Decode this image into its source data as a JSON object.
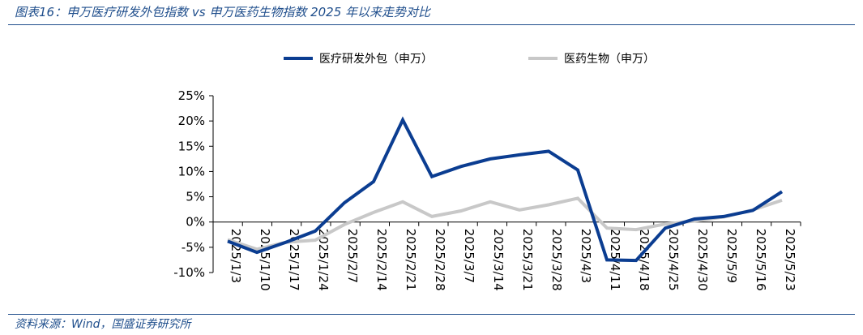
{
  "title": "图表16：申万医疗研发外包指数 vs 申万医药生物指数 2025 年以来走势对比",
  "source": "资料来源：Wind，国盛证券研究所",
  "chart_data": {
    "type": "line",
    "categories": [
      "2025/1/3",
      "2025/1/10",
      "2025/1/17",
      "2025/1/24",
      "2025/2/7",
      "2025/2/14",
      "2025/2/21",
      "2025/2/28",
      "2025/3/7",
      "2025/3/14",
      "2025/3/21",
      "2025/3/28",
      "2025/4/3",
      "2025/4/11",
      "2025/4/18",
      "2025/4/25",
      "2025/4/30",
      "2025/5/9",
      "2025/5/16",
      "2025/5/23"
    ],
    "series": [
      {
        "name": "医疗研发外包（申万）",
        "color": "#0b3d91",
        "values": [
          -3.8,
          -6.0,
          -4.0,
          -1.8,
          3.8,
          8.0,
          20.2,
          9.0,
          11.0,
          12.5,
          13.3,
          14.0,
          10.3,
          -7.5,
          -7.6,
          -1.2,
          0.6,
          1.1,
          2.3,
          6.0
        ]
      },
      {
        "name": "医药生物（申万）",
        "color": "#c8c8c8",
        "values": [
          -3.5,
          -5.4,
          -4.0,
          -3.6,
          -0.5,
          1.9,
          4.0,
          1.1,
          2.2,
          4.0,
          2.4,
          3.4,
          4.7,
          -1.2,
          -1.5,
          -0.4,
          0.2,
          1.0,
          2.4,
          4.3
        ]
      }
    ],
    "yticks": [
      "25%",
      "20%",
      "15%",
      "10%",
      "5%",
      "0%",
      "-5%",
      "-10%"
    ],
    "ylim": [
      -10,
      25
    ],
    "xlabel": "",
    "ylabel": "",
    "legend_position": "top",
    "grid": false
  }
}
